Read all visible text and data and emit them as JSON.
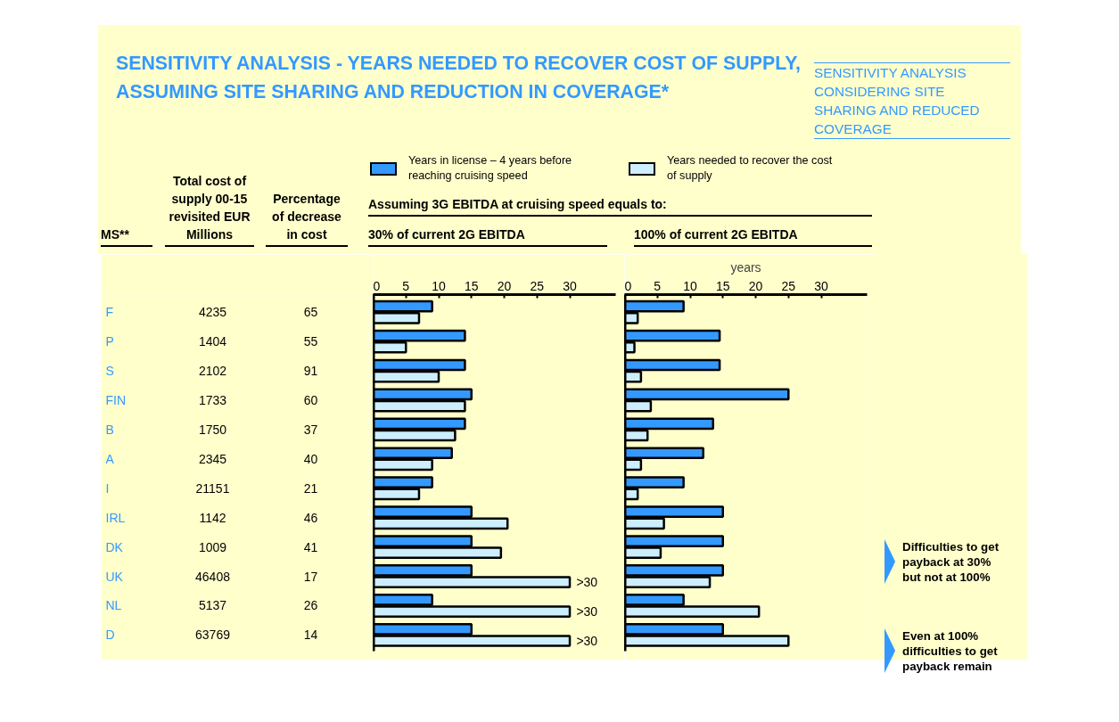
{
  "chart_data": [
    {
      "type": "other",
      "title": "SENSITIVITY ANALYSIS -  YEARS NEEDED TO RECOVER COST OF SUPPLY, ASSUMING SITE SHARING AND REDUCTION IN COVERAGE*",
      "subtitle": "SENSITIVITY ANALYSIS CONSIDERING SITE SHARING AND REDUCED COVERAGE",
      "xlabel": "MS**",
      "categories": [
        "F",
        "P",
        "S",
        "FIN",
        "B",
        "A",
        "I",
        "IRL",
        "DK",
        "UK",
        "NL",
        "D"
      ],
      "data_labels": true,
      "series": [
        {
          "name": "Total cost of supply 00-15 revisited EUR Millions",
          "values": [
            4235,
            1404,
            2102,
            1733,
            1750,
            2345,
            21151,
            1142,
            1009,
            46408,
            5137,
            63769
          ]
        },
        {
          "name": "Percentage of decrease in cost",
          "values": [
            65,
            55,
            91,
            60,
            37,
            40,
            21,
            46,
            41,
            17,
            26,
            14
          ]
        }
      ]
    },
    {
      "type": "bar",
      "orientation": "horizontal",
      "title": "30% of current 2G EBITDA",
      "xlim": [
        0,
        37
      ],
      "xticks": [
        0,
        5,
        10,
        15,
        20,
        25,
        30
      ],
      "tick_labels": "x",
      "legend": "top",
      "annotations": [
        "Assuming 3G EBITDA at cruising speed equals to:"
      ],
      "series": [
        {
          "name": "Years in license – 4 years before reaching cruising speed",
          "color": "#3399ff",
          "values": [
            9,
            14,
            14,
            15,
            14,
            12,
            9,
            15,
            15,
            15,
            9,
            15
          ]
        },
        {
          "name": "Years needed to recover the cost of supply",
          "color": "#cceeff",
          "values": [
            7,
            5,
            10,
            14,
            12.5,
            9,
            7,
            20.5,
            19.5,
            30,
            30,
            30
          ],
          "value_labels": [
            null,
            null,
            null,
            null,
            null,
            null,
            null,
            null,
            null,
            ">30",
            ">30",
            ">30"
          ]
        }
      ]
    },
    {
      "type": "bar",
      "orientation": "horizontal",
      "title": "100% of current 2G EBITDA",
      "xlabel": "years",
      "xlim": [
        0,
        37
      ],
      "xticks": [
        0,
        5,
        10,
        15,
        20,
        25,
        30
      ],
      "tick_labels": "x",
      "annotations": [
        "Difficulties to get\npayback at 30%\nbut not at 100%",
        "Even at 100%\ndifficulties to get\npayback remain"
      ],
      "series": [
        {
          "color": "#3399ff",
          "values": [
            9,
            14.5,
            14.5,
            25,
            13.5,
            12,
            9,
            15,
            15,
            15,
            9,
            15
          ]
        },
        {
          "color": "#cceeff",
          "values": [
            2,
            1.5,
            2.5,
            4,
            3.5,
            2.5,
            2,
            6,
            5.5,
            13,
            20.5,
            25
          ]
        }
      ]
    }
  ]
}
